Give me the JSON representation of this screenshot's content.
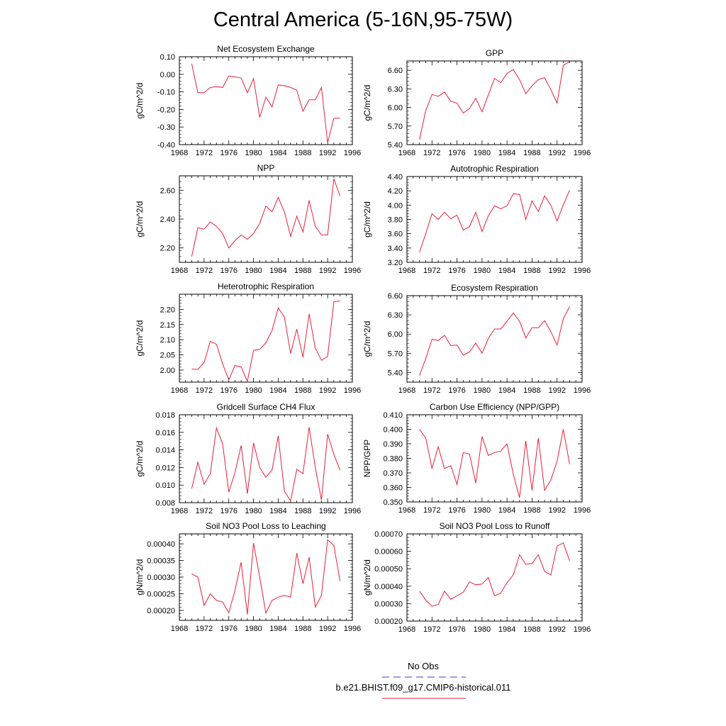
{
  "page": {
    "title": "Central America (5-16N,95-75W)"
  },
  "legend": {
    "entries": [
      {
        "label": "No Obs",
        "color": "#3b3bd6",
        "style": "dashed"
      },
      {
        "label": "b.e21.BHIST.f09_g17.CMIP6-historical.011",
        "color": "#e8203a",
        "style": "solid"
      }
    ]
  },
  "chart_data": [
    {
      "type": "line",
      "title": "Net Ecosystem Exchange",
      "ylabel": "gC/m^2/d",
      "xlim": [
        1968,
        1996
      ],
      "xticks": [
        1968,
        1972,
        1976,
        1980,
        1984,
        1988,
        1992,
        1996
      ],
      "ylim": [
        -0.4,
        0.1
      ],
      "yticks": [
        "0.10",
        "0.00",
        "-0.10",
        "-0.20",
        "-0.30",
        "-0.40"
      ],
      "x": [
        1970,
        1971,
        1972,
        1973,
        1974,
        1975,
        1976,
        1977,
        1978,
        1979,
        1980,
        1981,
        1982,
        1983,
        1984,
        1985,
        1986,
        1987,
        1988,
        1989,
        1990,
        1991,
        1992,
        1993,
        1994
      ],
      "series": [
        {
          "color": "#e8203a",
          "values": [
            0.06,
            -0.105,
            -0.105,
            -0.075,
            -0.07,
            -0.075,
            -0.01,
            -0.015,
            -0.02,
            -0.105,
            -0.025,
            -0.245,
            -0.13,
            -0.185,
            -0.06,
            -0.065,
            -0.075,
            -0.09,
            -0.21,
            -0.145,
            -0.145,
            -0.075,
            -0.39,
            -0.25,
            -0.25
          ]
        }
      ]
    },
    {
      "type": "line",
      "title": "GPP",
      "ylabel": "gC/m^2/d",
      "xlim": [
        1968,
        1996
      ],
      "xticks": [
        1968,
        1972,
        1976,
        1980,
        1984,
        1988,
        1992,
        1996
      ],
      "ylim": [
        5.4,
        6.75
      ],
      "yticks": [
        "6.60",
        "6.30",
        "6.00",
        "5.70",
        "5.40"
      ],
      "x": [
        1970,
        1971,
        1972,
        1973,
        1974,
        1975,
        1976,
        1977,
        1978,
        1979,
        1980,
        1981,
        1982,
        1983,
        1984,
        1985,
        1986,
        1987,
        1988,
        1989,
        1990,
        1991,
        1992,
        1993,
        1994
      ],
      "series": [
        {
          "color": "#e8203a",
          "values": [
            5.48,
            5.95,
            6.21,
            6.18,
            6.25,
            6.1,
            6.07,
            5.91,
            5.98,
            6.15,
            5.93,
            6.2,
            6.47,
            6.4,
            6.55,
            6.61,
            6.45,
            6.22,
            6.35,
            6.45,
            6.48,
            6.29,
            6.07,
            6.68,
            6.74
          ]
        }
      ]
    },
    {
      "type": "line",
      "title": "NPP",
      "ylabel": "gC/m^2/d",
      "xlim": [
        1968,
        1996
      ],
      "xticks": [
        1968,
        1972,
        1976,
        1980,
        1984,
        1988,
        1992,
        1996
      ],
      "ylim": [
        2.1,
        2.7
      ],
      "yticks": [
        "2.60",
        "2.40",
        "2.20"
      ],
      "x": [
        1970,
        1971,
        1972,
        1973,
        1974,
        1975,
        1976,
        1977,
        1978,
        1979,
        1980,
        1981,
        1982,
        1983,
        1984,
        1985,
        1986,
        1987,
        1988,
        1989,
        1990,
        1991,
        1992,
        1993,
        1994
      ],
      "series": [
        {
          "color": "#e8203a",
          "values": [
            2.14,
            2.34,
            2.33,
            2.38,
            2.35,
            2.3,
            2.2,
            2.25,
            2.29,
            2.26,
            2.3,
            2.37,
            2.49,
            2.45,
            2.55,
            2.45,
            2.28,
            2.42,
            2.31,
            2.53,
            2.35,
            2.29,
            2.29,
            2.68,
            2.56
          ]
        }
      ]
    },
    {
      "type": "line",
      "title": "Autotrophic Respiration",
      "ylabel": "gC/m^2/d",
      "xlim": [
        1968,
        1996
      ],
      "xticks": [
        1968,
        1972,
        1976,
        1980,
        1984,
        1988,
        1992,
        1996
      ],
      "ylim": [
        3.2,
        4.4
      ],
      "yticks": [
        "4.40",
        "4.20",
        "4.00",
        "3.80",
        "3.60",
        "3.40",
        "3.20"
      ],
      "x": [
        1970,
        1971,
        1972,
        1973,
        1974,
        1975,
        1976,
        1977,
        1978,
        1979,
        1980,
        1981,
        1982,
        1983,
        1984,
        1985,
        1986,
        1987,
        1988,
        1989,
        1990,
        1991,
        1992,
        1993,
        1994
      ],
      "series": [
        {
          "color": "#e8203a",
          "values": [
            3.34,
            3.6,
            3.88,
            3.8,
            3.9,
            3.81,
            3.86,
            3.65,
            3.7,
            3.9,
            3.63,
            3.85,
            3.99,
            3.95,
            3.99,
            4.16,
            4.15,
            3.8,
            4.06,
            3.91,
            4.13,
            4.0,
            3.78,
            4.0,
            4.21
          ]
        }
      ]
    },
    {
      "type": "line",
      "title": "Heterotrophic Respiration",
      "ylabel": "gC/m^2/d",
      "xlim": [
        1968,
        1996
      ],
      "xticks": [
        1968,
        1972,
        1976,
        1980,
        1984,
        1988,
        1992,
        1996
      ],
      "ylim": [
        1.96,
        2.25
      ],
      "yticks": [
        "2.20",
        "2.15",
        "2.10",
        "2.05",
        "2.00"
      ],
      "x": [
        1970,
        1971,
        1972,
        1973,
        1974,
        1975,
        1976,
        1977,
        1978,
        1979,
        1980,
        1981,
        1982,
        1983,
        1984,
        1985,
        1986,
        1987,
        1988,
        1989,
        1990,
        1991,
        1992,
        1993,
        1994
      ],
      "series": [
        {
          "color": "#e8203a",
          "values": [
            2.003,
            2.002,
            2.025,
            2.095,
            2.085,
            2.02,
            1.968,
            2.015,
            2.01,
            1.962,
            2.065,
            2.068,
            2.09,
            2.13,
            2.205,
            2.175,
            2.055,
            2.135,
            2.042,
            2.185,
            2.072,
            2.032,
            2.045,
            2.225,
            2.228
          ]
        }
      ]
    },
    {
      "type": "line",
      "title": "Ecosystem Respiration",
      "ylabel": "gC/m^2/d",
      "xlim": [
        1968,
        1996
      ],
      "xticks": [
        1968,
        1972,
        1976,
        1980,
        1984,
        1988,
        1992,
        1996
      ],
      "ylim": [
        5.25,
        6.6
      ],
      "yticks": [
        "6.60",
        "6.30",
        "6.00",
        "5.70",
        "5.40"
      ],
      "x": [
        1970,
        1971,
        1972,
        1973,
        1974,
        1975,
        1976,
        1977,
        1978,
        1979,
        1980,
        1981,
        1982,
        1983,
        1984,
        1985,
        1986,
        1987,
        1988,
        1989,
        1990,
        1991,
        1992,
        1993,
        1994
      ],
      "series": [
        {
          "color": "#e8203a",
          "values": [
            5.35,
            5.62,
            5.92,
            5.9,
            5.98,
            5.82,
            5.83,
            5.67,
            5.72,
            5.86,
            5.7,
            5.93,
            6.08,
            6.08,
            6.2,
            6.33,
            6.2,
            5.94,
            6.1,
            6.1,
            6.21,
            6.04,
            5.83,
            6.24,
            6.43
          ]
        }
      ]
    },
    {
      "type": "line",
      "title": "Gridcell Surface CH4 Flux",
      "ylabel": "gC/m^2/d",
      "xlim": [
        1968,
        1996
      ],
      "xticks": [
        1968,
        1972,
        1976,
        1980,
        1984,
        1988,
        1992,
        1996
      ],
      "ylim": [
        0.008,
        0.018
      ],
      "yticks": [
        "0.018",
        "0.016",
        "0.014",
        "0.012",
        "0.010",
        "0.008"
      ],
      "x": [
        1970,
        1971,
        1972,
        1973,
        1974,
        1975,
        1976,
        1977,
        1978,
        1979,
        1980,
        1981,
        1982,
        1983,
        1984,
        1985,
        1986,
        1987,
        1988,
        1989,
        1990,
        1991,
        1992,
        1993,
        1994
      ],
      "series": [
        {
          "color": "#e8203a",
          "values": [
            0.0096,
            0.0126,
            0.0101,
            0.0113,
            0.0165,
            0.0147,
            0.0092,
            0.0114,
            0.0145,
            0.009,
            0.0148,
            0.012,
            0.0109,
            0.0117,
            0.0156,
            0.0093,
            0.0082,
            0.0118,
            0.0113,
            0.0166,
            0.012,
            0.0083,
            0.0158,
            0.0135,
            0.0117
          ]
        }
      ]
    },
    {
      "type": "line",
      "title": "Carbon Use Efficiency (NPP/GPP)",
      "ylabel": "NPP/GPP",
      "xlim": [
        1968,
        1996
      ],
      "xticks": [
        1968,
        1972,
        1976,
        1980,
        1984,
        1988,
        1992,
        1996
      ],
      "ylim": [
        0.35,
        0.41
      ],
      "yticks": [
        "0.410",
        "0.400",
        "0.390",
        "0.380",
        "0.370",
        "0.360",
        "0.350"
      ],
      "x": [
        1970,
        1971,
        1972,
        1973,
        1974,
        1975,
        1976,
        1977,
        1978,
        1979,
        1980,
        1981,
        1982,
        1983,
        1984,
        1985,
        1986,
        1987,
        1988,
        1989,
        1990,
        1991,
        1992,
        1993,
        1994
      ],
      "series": [
        {
          "color": "#e8203a",
          "values": [
            0.4,
            0.394,
            0.373,
            0.388,
            0.373,
            0.375,
            0.362,
            0.384,
            0.383,
            0.363,
            0.395,
            0.382,
            0.384,
            0.385,
            0.39,
            0.369,
            0.353,
            0.392,
            0.358,
            0.394,
            0.358,
            0.365,
            0.378,
            0.4,
            0.376
          ]
        }
      ]
    },
    {
      "type": "line",
      "title": "Soil NO3 Pool Loss to Leaching",
      "ylabel": "gN/m^2/d",
      "xlim": [
        1968,
        1996
      ],
      "xticks": [
        1968,
        1972,
        1976,
        1980,
        1984,
        1988,
        1992,
        1996
      ],
      "ylim": [
        0.00017,
        0.00043
      ],
      "yticks": [
        "0.00040",
        "0.00035",
        "0.00030",
        "0.00025",
        "0.00020"
      ],
      "x": [
        1970,
        1971,
        1972,
        1973,
        1974,
        1975,
        1976,
        1977,
        1978,
        1979,
        1980,
        1981,
        1982,
        1983,
        1984,
        1985,
        1986,
        1987,
        1988,
        1989,
        1990,
        1991,
        1992,
        1993,
        1994
      ],
      "series": [
        {
          "color": "#e8203a",
          "values": [
            0.00031,
            0.0003,
            0.000215,
            0.00025,
            0.00023,
            0.000225,
            0.000193,
            0.00026,
            0.000345,
            0.000188,
            0.000402,
            0.0003,
            0.000192,
            0.00023,
            0.00024,
            0.000245,
            0.00024,
            0.000372,
            0.00028,
            0.00036,
            0.00021,
            0.000245,
            0.000412,
            0.000395,
            0.000288
          ]
        }
      ]
    },
    {
      "type": "line",
      "title": "Soil NO3 Pool Loss to Runoff",
      "ylabel": "gN/m^2/d",
      "xlim": [
        1968,
        1996
      ],
      "xticks": [
        1968,
        1972,
        1976,
        1980,
        1984,
        1988,
        1992,
        1996
      ],
      "ylim": [
        0.0002,
        0.0007
      ],
      "yticks": [
        "0.00070",
        "0.00060",
        "0.00050",
        "0.00040",
        "0.00030",
        "0.00020"
      ],
      "x": [
        1970,
        1971,
        1972,
        1973,
        1974,
        1975,
        1976,
        1977,
        1978,
        1979,
        1980,
        1981,
        1982,
        1983,
        1984,
        1985,
        1986,
        1987,
        1988,
        1989,
        1990,
        1991,
        1992,
        1993,
        1994
      ],
      "series": [
        {
          "color": "#e8203a",
          "values": [
            0.000372,
            0.00032,
            0.000285,
            0.000295,
            0.000372,
            0.000325,
            0.000345,
            0.000365,
            0.000425,
            0.000408,
            0.000412,
            0.00045,
            0.000345,
            0.00036,
            0.00042,
            0.000465,
            0.00058,
            0.000525,
            0.00053,
            0.00058,
            0.000485,
            0.000465,
            0.00063,
            0.000648,
            0.000545
          ]
        }
      ]
    }
  ]
}
